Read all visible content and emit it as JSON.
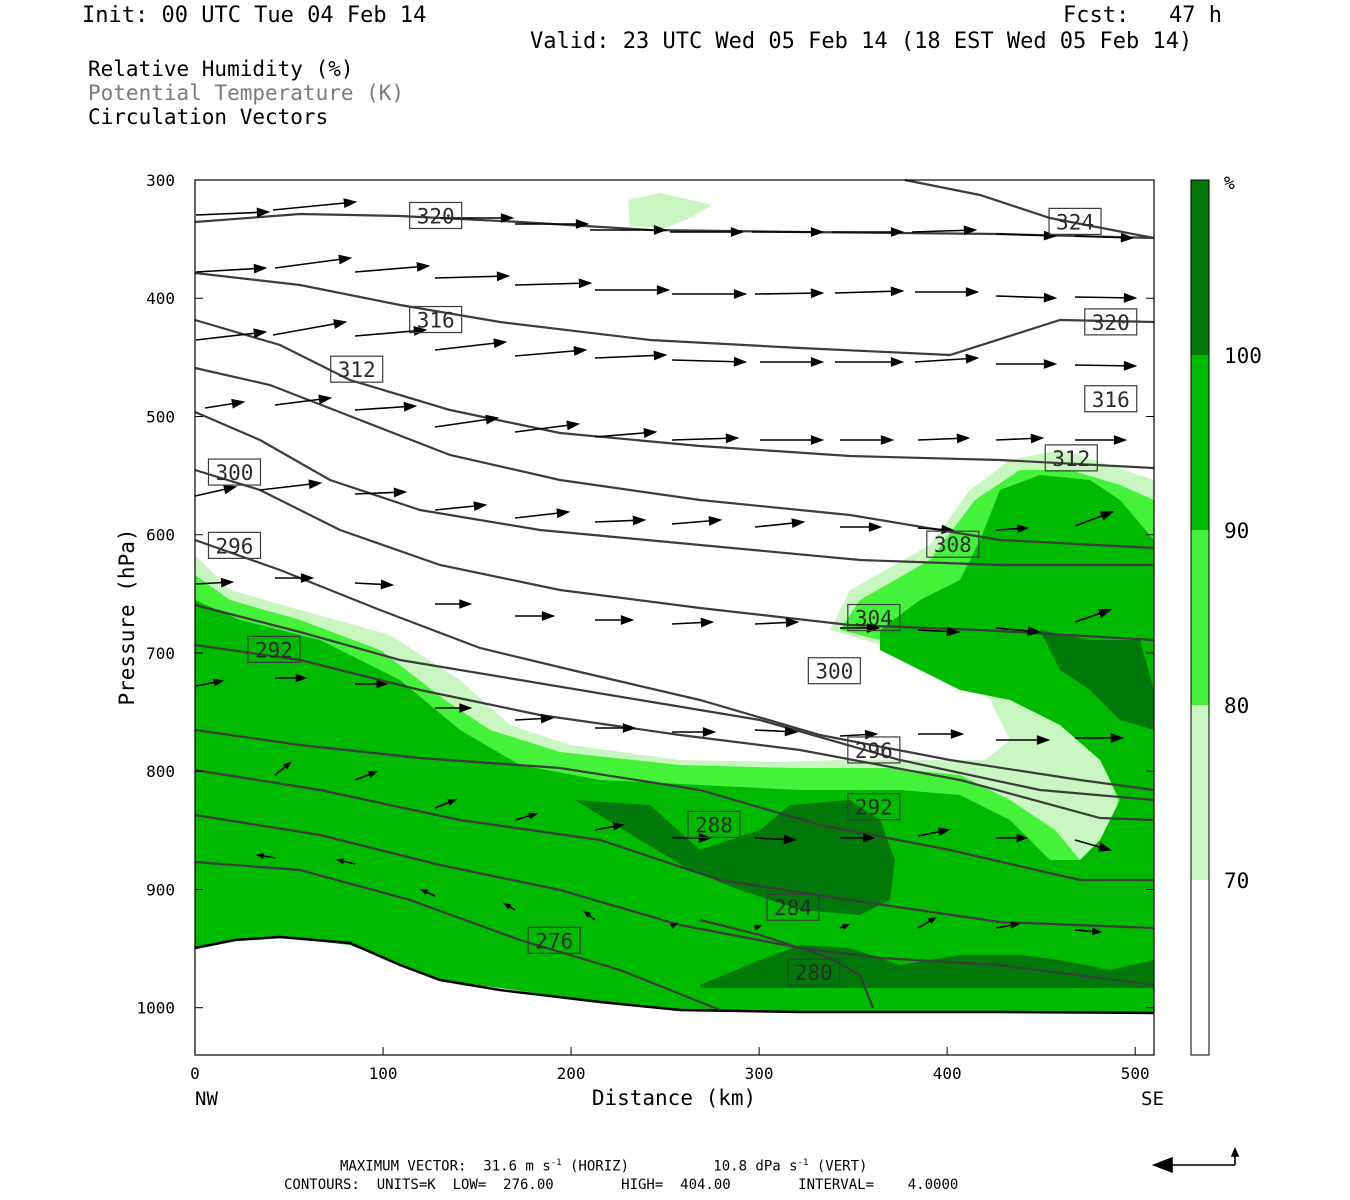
{
  "header": {
    "init": "Init: 00 UTC Tue 04 Feb 14",
    "fcst": "Fcst:   47 h",
    "valid": "Valid: 23 UTC Wed 05 Feb 14 (18 EST Wed 05 Feb 14)"
  },
  "legend": {
    "rh": "Relative Humidity (%)",
    "theta": "Potential Temperature (K)",
    "vectors": "Circulation Vectors"
  },
  "colors": {
    "rh_70_80": "#c8f5c0",
    "rh_80_90": "#44f23a",
    "rh_90_100": "#00ba00",
    "rh_100": "#00780a",
    "contour": "#3c3c3c",
    "theta_legend": "#7a7a7a"
  },
  "chart_data": {
    "type": "contour",
    "xlabel": "Distance (km)",
    "ylabel": "Pressure (hPa)",
    "xlim": [
      0,
      510
    ],
    "ylim": [
      1040,
      300
    ],
    "x_ticks": [
      "0",
      "100",
      "200",
      "300",
      "400",
      "500"
    ],
    "x_tick_values": [
      0,
      100,
      200,
      300,
      400,
      500
    ],
    "y_ticks": [
      "300",
      "400",
      "500",
      "600",
      "700",
      "800",
      "900",
      "1000"
    ],
    "y_tick_values": [
      300,
      400,
      500,
      600,
      700,
      800,
      900,
      1000
    ],
    "x_end_labels": {
      "left": "NW",
      "right": "SE"
    },
    "colorbar": {
      "unit": "%",
      "levels": [
        "70",
        "80",
        "90",
        "100"
      ]
    },
    "theta_labels": [
      {
        "text": "320",
        "x": 128,
        "p": 330
      },
      {
        "text": "324",
        "x": 468,
        "p": 335
      },
      {
        "text": "316",
        "x": 128,
        "p": 418
      },
      {
        "text": "320",
        "x": 487,
        "p": 420
      },
      {
        "text": "312",
        "x": 86,
        "p": 460
      },
      {
        "text": "316",
        "x": 487,
        "p": 485
      },
      {
        "text": "300",
        "x": 21,
        "p": 547
      },
      {
        "text": "312",
        "x": 466,
        "p": 535
      },
      {
        "text": "296",
        "x": 21,
        "p": 609
      },
      {
        "text": "308",
        "x": 403,
        "p": 608
      },
      {
        "text": "304",
        "x": 361,
        "p": 670
      },
      {
        "text": "292",
        "x": 42,
        "p": 697
      },
      {
        "text": "300",
        "x": 340,
        "p": 715
      },
      {
        "text": "296",
        "x": 361,
        "p": 782
      },
      {
        "text": "292",
        "x": 361,
        "p": 830
      },
      {
        "text": "288",
        "x": 276,
        "p": 845
      },
      {
        "text": "284",
        "x": 318,
        "p": 915
      },
      {
        "text": "276",
        "x": 191,
        "p": 943
      },
      {
        "text": "280",
        "x": 329,
        "p": 970
      }
    ]
  },
  "footer": {
    "max_prefix": "MAXIMUM VECTOR:  31.6 m s",
    "max_mid": " (HORIZ)          10.8 dPa s",
    "max_suffix": " (VERT)",
    "sup": "-1",
    "contours": "CONTOURS:  UNITS=K  LOW=  276.00        HIGH=  404.00        INTERVAL=    4.0000"
  }
}
